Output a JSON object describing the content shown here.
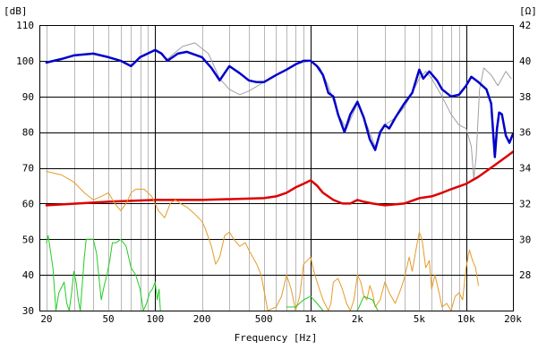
{
  "chart_data": {
    "type": "line",
    "xlabel": "Frequency [Hz]",
    "x_scale": "log",
    "xlim": [
      18,
      20000
    ],
    "x_tick_labels": [
      {
        "value": 20,
        "label": "20"
      },
      {
        "value": 50,
        "label": "50"
      },
      {
        "value": 100,
        "label": "100"
      },
      {
        "value": 200,
        "label": "200"
      },
      {
        "value": 500,
        "label": "500"
      },
      {
        "value": 1000,
        "label": "1k"
      },
      {
        "value": 2000,
        "label": "2k"
      },
      {
        "value": 5000,
        "label": "5k"
      },
      {
        "value": 10000,
        "label": "10k"
      },
      {
        "value": 20000,
        "label": "20k"
      }
    ],
    "left_axis": {
      "unit_label": "[dB]",
      "ylim": [
        30,
        110
      ],
      "ticks": [
        30,
        40,
        50,
        60,
        70,
        80,
        90,
        100,
        110
      ]
    },
    "right_axis": {
      "unit_label": "[Ω]",
      "ylim": [
        26,
        42
      ],
      "ticks": [
        28,
        30,
        32,
        34,
        36,
        38,
        40,
        42
      ]
    },
    "grid": true,
    "legend": "none",
    "series": [
      {
        "color": "#a0a0a0",
        "axis": "left",
        "width": 1,
        "points": [
          [
            20,
            99.5
          ],
          [
            30,
            101.5
          ],
          [
            40,
            102
          ],
          [
            50,
            101
          ],
          [
            60,
            100
          ],
          [
            70,
            98.5
          ],
          [
            80,
            101
          ],
          [
            100,
            103
          ],
          [
            120,
            100.5
          ],
          [
            150,
            104
          ],
          [
            180,
            105
          ],
          [
            220,
            102
          ],
          [
            260,
            95
          ],
          [
            300,
            92
          ],
          [
            350,
            90.5
          ],
          [
            400,
            91.5
          ],
          [
            500,
            94
          ],
          [
            600,
            96
          ],
          [
            800,
            99
          ],
          [
            1000,
            100
          ],
          [
            1150,
            98
          ],
          [
            1300,
            93
          ],
          [
            1500,
            85
          ],
          [
            1700,
            81
          ],
          [
            2000,
            88
          ],
          [
            2300,
            82
          ],
          [
            2600,
            76
          ],
          [
            3000,
            82
          ],
          [
            3500,
            84
          ],
          [
            4000,
            87
          ],
          [
            4500,
            91
          ],
          [
            5000,
            95
          ],
          [
            5500,
            97
          ],
          [
            6000,
            95
          ],
          [
            7000,
            90
          ],
          [
            8000,
            85
          ],
          [
            9000,
            82
          ],
          [
            10000,
            81
          ],
          [
            10800,
            76
          ],
          [
            11200,
            67
          ],
          [
            11600,
            73
          ],
          [
            12200,
            92
          ],
          [
            13000,
            98
          ],
          [
            14500,
            96
          ],
          [
            16000,
            93
          ],
          [
            18000,
            97
          ],
          [
            19500,
            95
          ]
        ]
      },
      {
        "color": "#0000cc",
        "axis": "left",
        "width": 2.5,
        "points": [
          [
            20,
            99.5
          ],
          [
            25,
            100.5
          ],
          [
            30,
            101.5
          ],
          [
            40,
            102
          ],
          [
            50,
            101
          ],
          [
            60,
            100
          ],
          [
            70,
            98.5
          ],
          [
            80,
            101
          ],
          [
            100,
            103
          ],
          [
            110,
            102
          ],
          [
            120,
            100
          ],
          [
            140,
            102
          ],
          [
            160,
            102.5
          ],
          [
            200,
            101
          ],
          [
            230,
            98
          ],
          [
            260,
            94.5
          ],
          [
            300,
            98.5
          ],
          [
            350,
            96.5
          ],
          [
            400,
            94.5
          ],
          [
            450,
            94
          ],
          [
            500,
            94
          ],
          [
            600,
            96
          ],
          [
            700,
            97.5
          ],
          [
            800,
            99
          ],
          [
            900,
            100
          ],
          [
            1000,
            100
          ],
          [
            1100,
            98.5
          ],
          [
            1200,
            96
          ],
          [
            1300,
            91
          ],
          [
            1400,
            90
          ],
          [
            1500,
            85
          ],
          [
            1650,
            80
          ],
          [
            1800,
            85
          ],
          [
            2000,
            88.5
          ],
          [
            2200,
            84
          ],
          [
            2400,
            78
          ],
          [
            2600,
            75
          ],
          [
            2800,
            80
          ],
          [
            3000,
            82
          ],
          [
            3200,
            81
          ],
          [
            3500,
            84
          ],
          [
            4000,
            88
          ],
          [
            4500,
            91
          ],
          [
            5000,
            97.5
          ],
          [
            5300,
            95
          ],
          [
            5800,
            97
          ],
          [
            6500,
            94.5
          ],
          [
            7000,
            92
          ],
          [
            8000,
            90
          ],
          [
            9000,
            90.5
          ],
          [
            10000,
            93
          ],
          [
            10800,
            95.5
          ],
          [
            12000,
            94
          ],
          [
            13500,
            92
          ],
          [
            14500,
            88
          ],
          [
            15300,
            73
          ],
          [
            15800,
            81
          ],
          [
            16300,
            85.5
          ],
          [
            17000,
            85
          ],
          [
            18000,
            79
          ],
          [
            19000,
            77
          ],
          [
            20000,
            79.5
          ]
        ]
      },
      {
        "color": "#dd0000",
        "axis": "right",
        "width": 2.5,
        "points": [
          [
            20,
            31.9
          ],
          [
            50,
            32.1
          ],
          [
            100,
            32.2
          ],
          [
            200,
            32.2
          ],
          [
            500,
            32.3
          ],
          [
            600,
            32.4
          ],
          [
            700,
            32.6
          ],
          [
            800,
            32.9
          ],
          [
            900,
            33.1
          ],
          [
            1000,
            33.3
          ],
          [
            1100,
            33.0
          ],
          [
            1200,
            32.6
          ],
          [
            1400,
            32.2
          ],
          [
            1600,
            32.0
          ],
          [
            1800,
            32.0
          ],
          [
            2000,
            32.2
          ],
          [
            2200,
            32.1
          ],
          [
            2500,
            32.0
          ],
          [
            3000,
            31.9
          ],
          [
            4000,
            32.0
          ],
          [
            5000,
            32.3
          ],
          [
            6000,
            32.4
          ],
          [
            7000,
            32.6
          ],
          [
            8000,
            32.8
          ],
          [
            10000,
            33.1
          ],
          [
            12000,
            33.5
          ],
          [
            15000,
            34.1
          ],
          [
            18000,
            34.6
          ],
          [
            20000,
            34.9
          ]
        ]
      },
      {
        "color": "#e69a28",
        "axis": "left",
        "width": 1,
        "points": [
          [
            20,
            69
          ],
          [
            25,
            68
          ],
          [
            30,
            66
          ],
          [
            35,
            63
          ],
          [
            40,
            61
          ],
          [
            45,
            62
          ],
          [
            50,
            63
          ],
          [
            55,
            60
          ],
          [
            60,
            58
          ],
          [
            65,
            60
          ],
          [
            70,
            63
          ],
          [
            75,
            64
          ],
          [
            85,
            64
          ],
          [
            95,
            62
          ],
          [
            105,
            58
          ],
          [
            115,
            56
          ],
          [
            125,
            60
          ],
          [
            135,
            61
          ],
          [
            145,
            60
          ],
          [
            160,
            59
          ],
          [
            180,
            57
          ],
          [
            200,
            55
          ],
          [
            210,
            53
          ],
          [
            230,
            48
          ],
          [
            245,
            43
          ],
          [
            260,
            45
          ],
          [
            280,
            51
          ],
          [
            300,
            52
          ],
          [
            320,
            50
          ],
          [
            350,
            48
          ],
          [
            380,
            49
          ],
          [
            400,
            47
          ],
          [
            450,
            43
          ],
          [
            480,
            40
          ],
          [
            500,
            36
          ],
          [
            530,
            30
          ],
          [
            600,
            31
          ],
          [
            650,
            34
          ],
          [
            700,
            40
          ],
          [
            750,
            36
          ],
          [
            800,
            30
          ],
          [
            850,
            34
          ],
          [
            900,
            43
          ],
          [
            950,
            44
          ],
          [
            1000,
            45
          ],
          [
            1050,
            41
          ],
          [
            1100,
            38
          ],
          [
            1200,
            33
          ],
          [
            1300,
            30
          ],
          [
            1350,
            32
          ],
          [
            1400,
            38
          ],
          [
            1500,
            39
          ],
          [
            1600,
            36
          ],
          [
            1700,
            32
          ],
          [
            1800,
            30
          ],
          [
            1900,
            33
          ],
          [
            2000,
            40
          ],
          [
            2100,
            38
          ],
          [
            2200,
            34
          ],
          [
            2300,
            33
          ],
          [
            2400,
            37
          ],
          [
            2500,
            35
          ],
          [
            2600,
            31
          ],
          [
            2800,
            33
          ],
          [
            3000,
            38
          ],
          [
            3200,
            35
          ],
          [
            3500,
            32
          ],
          [
            3800,
            36
          ],
          [
            4000,
            39
          ],
          [
            4300,
            45
          ],
          [
            4500,
            41
          ],
          [
            4800,
            48
          ],
          [
            5000,
            52
          ],
          [
            5200,
            50
          ],
          [
            5500,
            42
          ],
          [
            5800,
            44
          ],
          [
            6000,
            36
          ],
          [
            6300,
            40
          ],
          [
            6700,
            35
          ],
          [
            7000,
            31
          ],
          [
            7500,
            32
          ],
          [
            8000,
            30
          ],
          [
            8500,
            34
          ],
          [
            9000,
            35
          ],
          [
            9500,
            33
          ],
          [
            10000,
            42
          ],
          [
            10500,
            47
          ],
          [
            11000,
            44
          ],
          [
            11500,
            42
          ],
          [
            12000,
            37
          ]
        ]
      },
      {
        "color": "#22cc22",
        "axis": "left",
        "width": 1,
        "points": [
          [
            20,
            49
          ],
          [
            20.5,
            51
          ],
          [
            21,
            48
          ],
          [
            22,
            42
          ],
          [
            23,
            30
          ],
          [
            24,
            35
          ],
          [
            26,
            38
          ],
          [
            27,
            32
          ],
          [
            28,
            30
          ],
          [
            29,
            35
          ],
          [
            30,
            41
          ],
          [
            31,
            38
          ],
          [
            32,
            33
          ],
          [
            33,
            30
          ],
          [
            35,
            45
          ],
          [
            36,
            50
          ],
          [
            38,
            50
          ],
          [
            40,
            50
          ],
          [
            42,
            46
          ],
          [
            45,
            33
          ],
          [
            47,
            37
          ],
          [
            49,
            40
          ],
          [
            51,
            44
          ],
          [
            53,
            49
          ],
          [
            56,
            49
          ],
          [
            60,
            50
          ],
          [
            65,
            48
          ],
          [
            70,
            42
          ],
          [
            75,
            40
          ],
          [
            80,
            36
          ],
          [
            84,
            30
          ]
        ]
      },
      {
        "color": "#22cc22",
        "axis": "left",
        "width": 1,
        "points": [
          [
            84,
            30
          ],
          [
            88,
            32
          ],
          [
            92,
            35
          ],
          [
            96,
            36
          ],
          [
            100,
            38
          ],
          [
            103,
            33
          ],
          [
            106,
            36
          ],
          [
            108,
            30
          ]
        ]
      },
      {
        "color": "#22cc22",
        "axis": "left",
        "width": 1,
        "points": [
          [
            700,
            31
          ],
          [
            800,
            31
          ],
          [
            900,
            33
          ],
          [
            1000,
            34
          ],
          [
            1100,
            32
          ],
          [
            1200,
            30
          ]
        ]
      },
      {
        "color": "#22cc22",
        "axis": "left",
        "width": 1,
        "points": [
          [
            2000,
            30
          ],
          [
            2200,
            34
          ],
          [
            2500,
            33
          ],
          [
            2700,
            30
          ]
        ]
      }
    ]
  }
}
